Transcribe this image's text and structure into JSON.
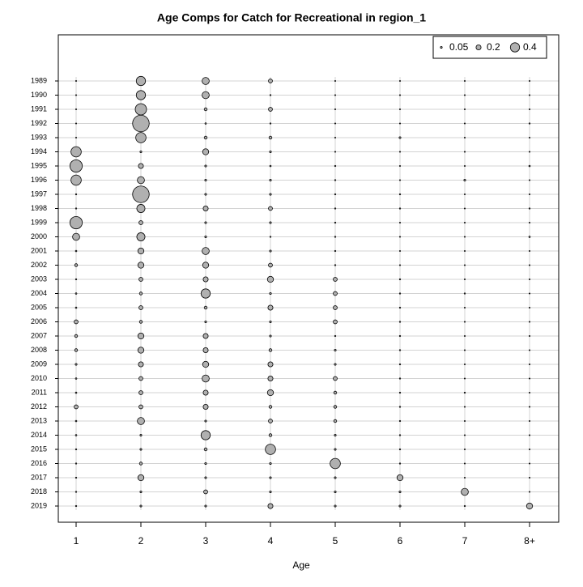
{
  "chart_data": {
    "type": "bubble",
    "title": "Age Comps for Catch for Recreational in region_1",
    "xlabel": "Age",
    "categories": [
      1,
      2,
      3,
      4,
      5,
      6,
      7,
      "8+"
    ],
    "rows": [
      1989,
      1990,
      1991,
      1992,
      1993,
      1994,
      1995,
      1996,
      1997,
      1998,
      1999,
      2000,
      2001,
      2002,
      2003,
      2004,
      2005,
      2006,
      2007,
      2008,
      2009,
      2010,
      2011,
      2012,
      2013,
      2014,
      2015,
      2016,
      2017,
      2018,
      2019
    ],
    "values": [
      [
        0.01,
        0.4,
        0.3,
        0.15,
        0.01,
        0.01,
        0.01,
        0.01
      ],
      [
        0.01,
        0.4,
        0.3,
        0.02,
        0.01,
        0.01,
        0.01,
        0.01
      ],
      [
        0.01,
        0.5,
        0.1,
        0.15,
        0.01,
        0.01,
        0.01,
        0.01
      ],
      [
        0.01,
        0.75,
        0.03,
        0.02,
        0.01,
        0.01,
        0.01,
        0.02
      ],
      [
        0.01,
        0.45,
        0.1,
        0.1,
        0.01,
        0.05,
        0.01,
        0.01
      ],
      [
        0.45,
        0.05,
        0.25,
        0.05,
        0.01,
        0.01,
        0.01,
        0.01
      ],
      [
        0.55,
        0.2,
        0.05,
        0.03,
        0.02,
        0.01,
        0.01,
        0.03
      ],
      [
        0.45,
        0.3,
        0.05,
        0.05,
        0.02,
        0.01,
        0.05,
        0.01
      ],
      [
        0.02,
        0.75,
        0.05,
        0.05,
        0.02,
        0.02,
        0.01,
        0.01
      ],
      [
        0.02,
        0.35,
        0.2,
        0.15,
        0.02,
        0.02,
        0.01,
        0.02
      ],
      [
        0.55,
        0.15,
        0.05,
        0.05,
        0.02,
        0.01,
        0.01,
        0.01
      ],
      [
        0.3,
        0.35,
        0.05,
        0.02,
        0.02,
        0.01,
        0.01,
        0.03
      ],
      [
        0.03,
        0.25,
        0.3,
        0.05,
        0.02,
        0.01,
        0.01,
        0.01
      ],
      [
        0.1,
        0.25,
        0.25,
        0.15,
        0.02,
        0.01,
        0.01,
        0.01
      ],
      [
        0.02,
        0.15,
        0.2,
        0.25,
        0.15,
        0.02,
        0.01,
        0.01
      ],
      [
        0.03,
        0.1,
        0.4,
        0.05,
        0.15,
        0.02,
        0.02,
        0.01
      ],
      [
        0.03,
        0.15,
        0.1,
        0.2,
        0.15,
        0.02,
        0.01,
        0.01
      ],
      [
        0.15,
        0.1,
        0.05,
        0.05,
        0.15,
        0.02,
        0.01,
        0.01
      ],
      [
        0.1,
        0.25,
        0.2,
        0.05,
        0.02,
        0.02,
        0.01,
        0.01
      ],
      [
        0.1,
        0.25,
        0.2,
        0.1,
        0.05,
        0.02,
        0.01,
        0.01
      ],
      [
        0.05,
        0.2,
        0.25,
        0.2,
        0.05,
        0.02,
        0.01,
        0.01
      ],
      [
        0.03,
        0.15,
        0.3,
        0.2,
        0.15,
        0.02,
        0.01,
        0.01
      ],
      [
        0.03,
        0.15,
        0.2,
        0.25,
        0.1,
        0.02,
        0.02,
        0.01
      ],
      [
        0.15,
        0.15,
        0.2,
        0.1,
        0.1,
        0.02,
        0.01,
        0.01
      ],
      [
        0.03,
        0.3,
        0.05,
        0.15,
        0.1,
        0.02,
        0.01,
        0.01
      ],
      [
        0.03,
        0.05,
        0.4,
        0.1,
        0.05,
        0.02,
        0.01,
        0.01
      ],
      [
        0.02,
        0.05,
        0.1,
        0.45,
        0.05,
        0.02,
        0.01,
        0.01
      ],
      [
        0.02,
        0.1,
        0.05,
        0.05,
        0.45,
        0.02,
        0.01,
        0.01
      ],
      [
        0.02,
        0.25,
        0.05,
        0.05,
        0.05,
        0.25,
        0.01,
        0.01
      ],
      [
        0.02,
        0.05,
        0.15,
        0.05,
        0.05,
        0.05,
        0.3,
        0.01
      ],
      [
        0.02,
        0.05,
        0.05,
        0.2,
        0.05,
        0.05,
        0.02,
        0.25
      ]
    ],
    "size_legend": [
      0.05,
      0.2,
      0.4
    ],
    "legend_position": "top-right",
    "color": "#b0b0b0",
    "grid": true
  }
}
